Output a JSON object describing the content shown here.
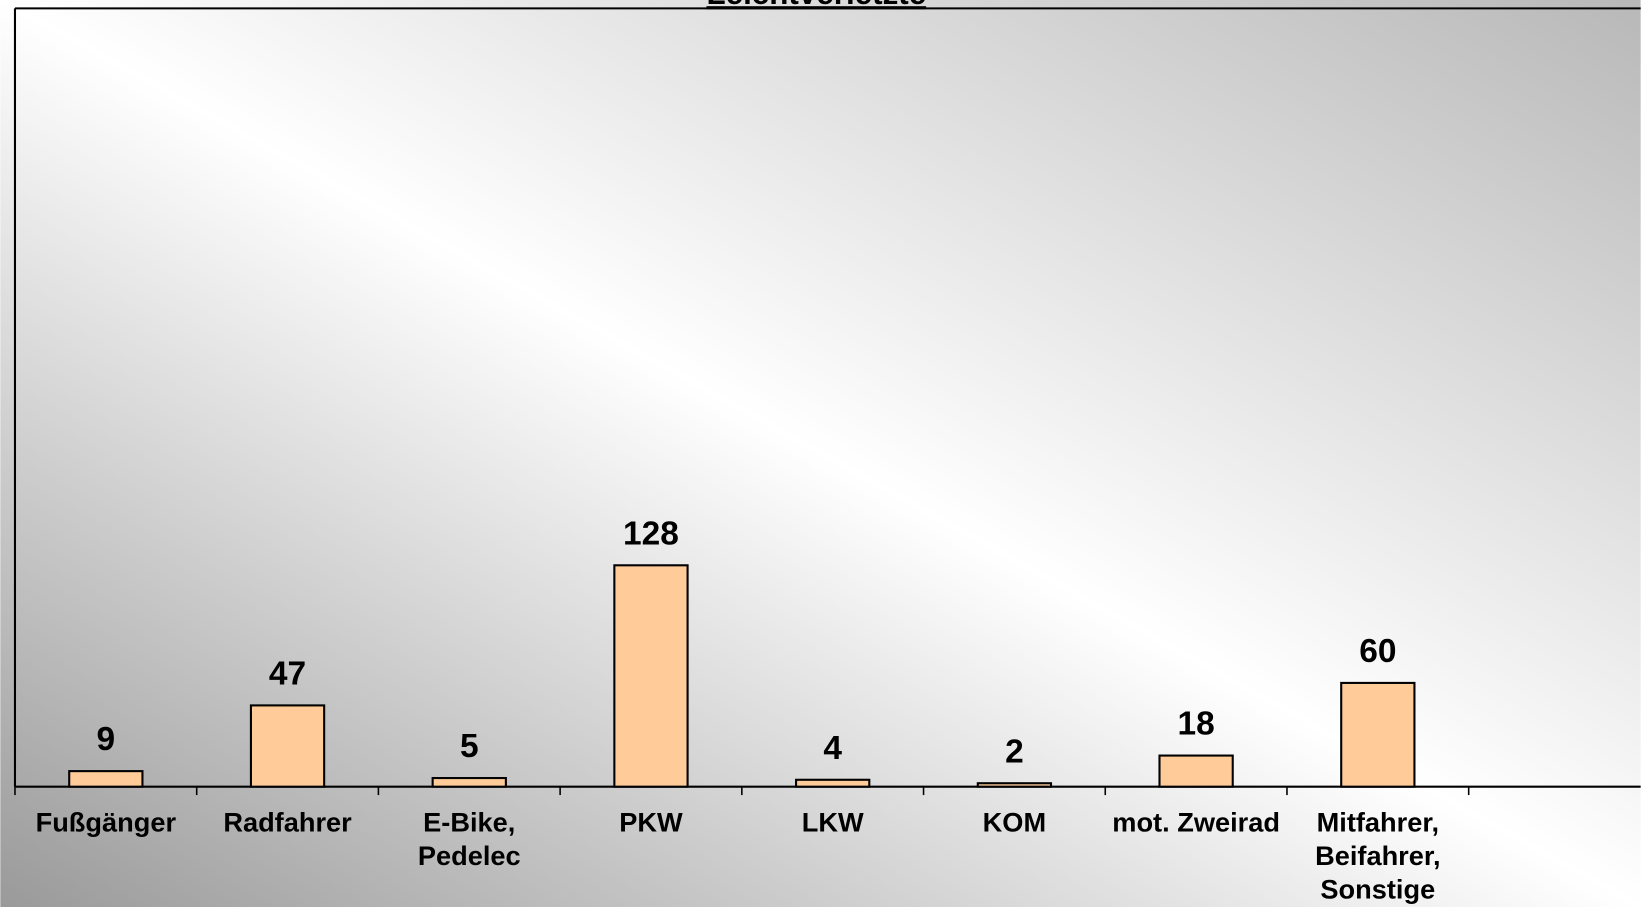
{
  "chart_data": {
    "type": "bar",
    "title": "Leichtverletzte",
    "categories": [
      "Fußgänger",
      "Radfahrer",
      "E-Bike, Pedelec",
      "PKW",
      "LKW",
      "KOM",
      "mot. Zweirad",
      "Mitfahrer, Beifahrer, Sonstige",
      null
    ],
    "values": [
      9,
      47,
      5,
      128,
      4,
      2,
      18,
      60,
      null
    ],
    "color": "#FFCC99",
    "ylim": [
      0,
      450
    ]
  }
}
